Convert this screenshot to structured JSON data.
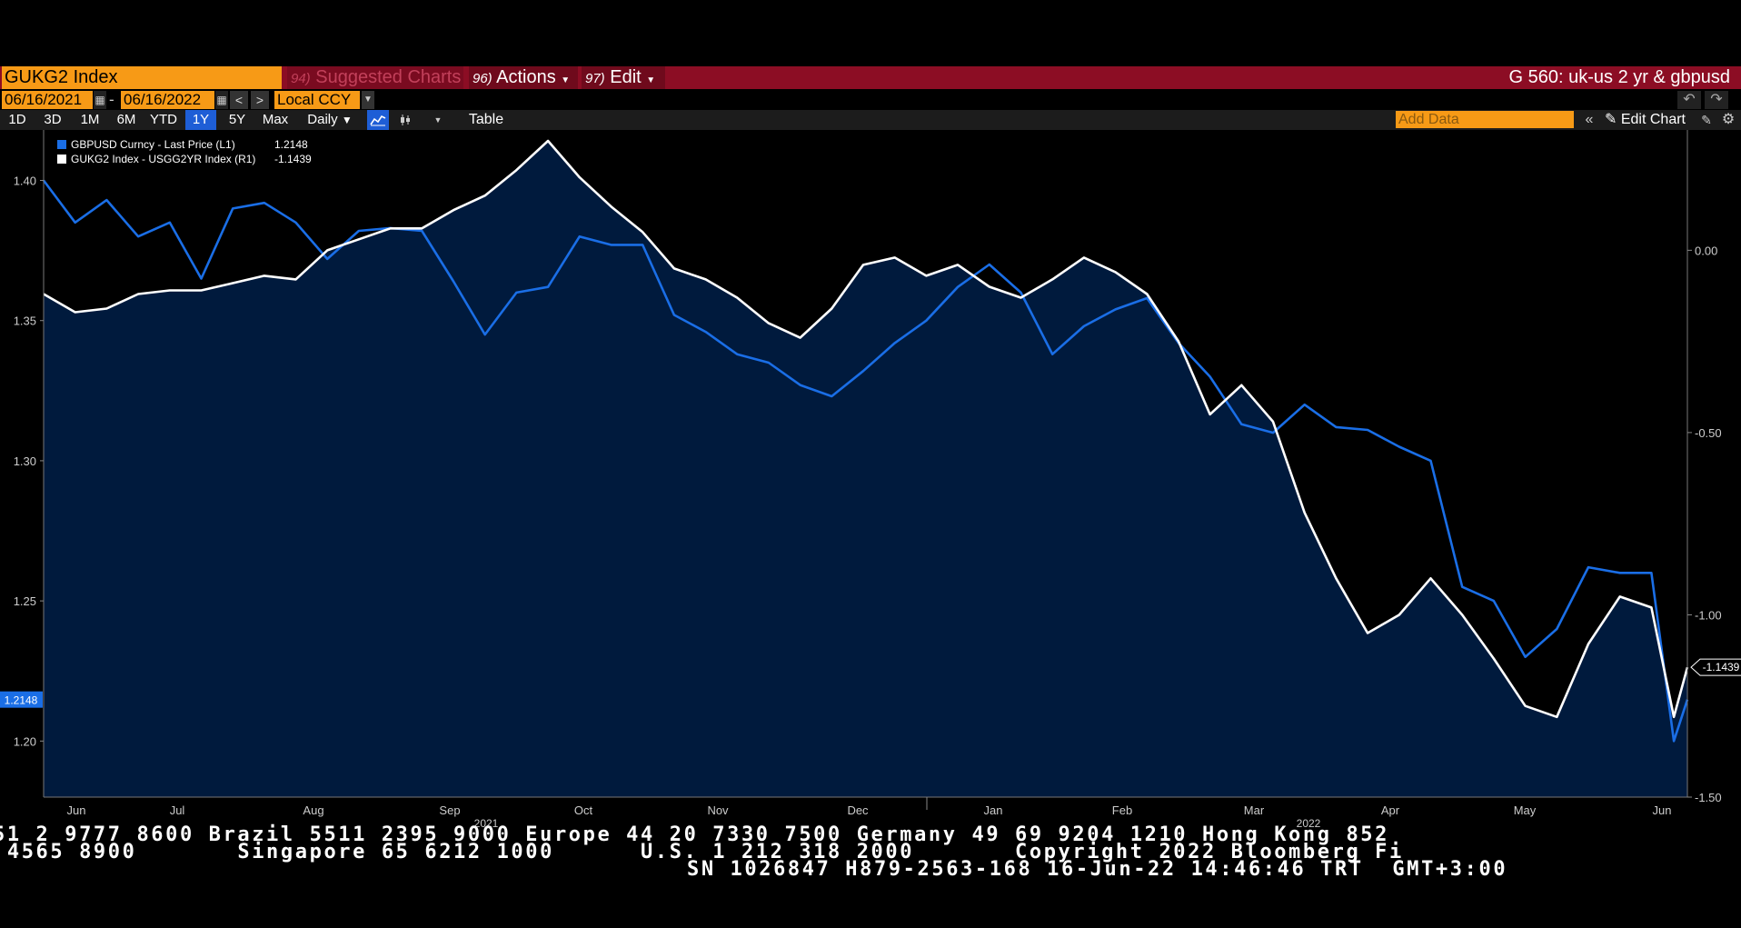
{
  "header": {
    "ticker": "GUKG2 Index",
    "suggested_num": "94)",
    "suggested_label": "Suggested Charts",
    "actions_num": "96)",
    "actions_label": "Actions",
    "edit_num": "97)",
    "edit_label": "Edit",
    "page_title": "G 560: uk-us 2 yr & gbpusd"
  },
  "daterange": {
    "start": "06/16/2021",
    "dash": "-",
    "end": "06/16/2022",
    "prev": "<",
    "next": ">",
    "currency": "Local CCY"
  },
  "toolbar": {
    "ranges": [
      "1D",
      "3D",
      "1M",
      "6M",
      "YTD",
      "1Y",
      "5Y",
      "Max"
    ],
    "active_range": "1Y",
    "frequency": "Daily",
    "table_label": "Table",
    "add_data_placeholder": "Add Data",
    "edit_chart_label": "Edit Chart"
  },
  "colors": {
    "blue_series": "#1a6ee6",
    "white_series": "#ffffff",
    "area_fill": "#001a3d",
    "brand_orange": "#f79a16",
    "brand_red": "#8c0d24"
  },
  "chart_data": {
    "type": "line",
    "legend": {
      "placement": "top-left",
      "entries": [
        {
          "label": "GBPUSD Curncy - Last Price (L1)",
          "value": "1.2148",
          "color": "#1a6ee6"
        },
        {
          "label": "GUKG2 Index - USGG2YR Index (R1)",
          "value": "-1.1439",
          "color": "#ffffff"
        }
      ]
    },
    "x_range": [
      "2021-06-16",
      "2022-06-16"
    ],
    "x_ticks": [
      "Jun",
      "Jul",
      "Aug",
      "Sep",
      "Oct",
      "Nov",
      "Dec",
      "Jan",
      "Feb",
      "Mar",
      "Apr",
      "May",
      "Jun"
    ],
    "year_labels": [
      "2021",
      "2022"
    ],
    "left_axis": {
      "ylim": [
        1.18,
        1.418
      ],
      "ticks": [
        "1.40",
        "1.35",
        "1.30",
        "1.25",
        "1.20"
      ],
      "current_label": "1.2148"
    },
    "right_axis": {
      "ylim": [
        -1.5,
        0.33
      ],
      "ticks": [
        "0.00",
        "-0.50",
        "-1.00",
        "-1.50"
      ],
      "current_label": "-1.1439"
    },
    "series": [
      {
        "name": "GBPUSD Curncy - Last Price (L1)",
        "axis": "left",
        "x": [
          "2021-06-16",
          "2021-06-23",
          "2021-06-30",
          "2021-07-07",
          "2021-07-14",
          "2021-07-21",
          "2021-07-28",
          "2021-08-04",
          "2021-08-11",
          "2021-08-18",
          "2021-08-25",
          "2021-09-01",
          "2021-09-08",
          "2021-09-15",
          "2021-09-22",
          "2021-09-29",
          "2021-10-06",
          "2021-10-13",
          "2021-10-20",
          "2021-10-27",
          "2021-11-03",
          "2021-11-10",
          "2021-11-17",
          "2021-11-24",
          "2021-12-01",
          "2021-12-08",
          "2021-12-15",
          "2021-12-22",
          "2021-12-29",
          "2022-01-05",
          "2022-01-12",
          "2022-01-19",
          "2022-01-26",
          "2022-02-02",
          "2022-02-09",
          "2022-02-16",
          "2022-02-23",
          "2022-03-02",
          "2022-03-09",
          "2022-03-16",
          "2022-03-23",
          "2022-03-30",
          "2022-04-06",
          "2022-04-13",
          "2022-04-20",
          "2022-04-27",
          "2022-05-04",
          "2022-05-11",
          "2022-05-18",
          "2022-05-25",
          "2022-06-01",
          "2022-06-08",
          "2022-06-13",
          "2022-06-16"
        ],
        "values": [
          1.4,
          1.385,
          1.393,
          1.38,
          1.385,
          1.365,
          1.39,
          1.392,
          1.385,
          1.372,
          1.382,
          1.383,
          1.382,
          1.364,
          1.345,
          1.36,
          1.362,
          1.38,
          1.377,
          1.377,
          1.352,
          1.346,
          1.338,
          1.335,
          1.327,
          1.323,
          1.332,
          1.342,
          1.35,
          1.362,
          1.37,
          1.36,
          1.338,
          1.348,
          1.354,
          1.358,
          1.342,
          1.33,
          1.313,
          1.31,
          1.32,
          1.312,
          1.311,
          1.305,
          1.3,
          1.255,
          1.25,
          1.23,
          1.24,
          1.262,
          1.26,
          1.26,
          1.2,
          1.2148
        ]
      },
      {
        "name": "GUKG2 Index - USGG2YR Index (R1)",
        "axis": "right",
        "x": [
          "2021-06-16",
          "2021-06-23",
          "2021-06-30",
          "2021-07-07",
          "2021-07-14",
          "2021-07-21",
          "2021-07-28",
          "2021-08-04",
          "2021-08-11",
          "2021-08-18",
          "2021-08-25",
          "2021-09-01",
          "2021-09-08",
          "2021-09-15",
          "2021-09-22",
          "2021-09-29",
          "2021-10-06",
          "2021-10-13",
          "2021-10-20",
          "2021-10-27",
          "2021-11-03",
          "2021-11-10",
          "2021-11-17",
          "2021-11-24",
          "2021-12-01",
          "2021-12-08",
          "2021-12-15",
          "2021-12-22",
          "2021-12-29",
          "2022-01-05",
          "2022-01-12",
          "2022-01-19",
          "2022-01-26",
          "2022-02-02",
          "2022-02-09",
          "2022-02-16",
          "2022-02-23",
          "2022-03-02",
          "2022-03-09",
          "2022-03-16",
          "2022-03-23",
          "2022-03-30",
          "2022-04-06",
          "2022-04-13",
          "2022-04-20",
          "2022-04-27",
          "2022-05-04",
          "2022-05-11",
          "2022-05-18",
          "2022-05-25",
          "2022-06-01",
          "2022-06-08",
          "2022-06-13",
          "2022-06-16"
        ],
        "values": [
          -0.12,
          -0.17,
          -0.16,
          -0.12,
          -0.11,
          -0.11,
          -0.09,
          -0.07,
          -0.08,
          0.0,
          0.03,
          0.06,
          0.06,
          0.11,
          0.15,
          0.22,
          0.3,
          0.2,
          0.12,
          0.05,
          -0.05,
          -0.08,
          -0.13,
          -0.2,
          -0.24,
          -0.16,
          -0.04,
          -0.02,
          -0.07,
          -0.04,
          -0.1,
          -0.13,
          -0.08,
          -0.02,
          -0.06,
          -0.12,
          -0.25,
          -0.45,
          -0.37,
          -0.47,
          -0.72,
          -0.9,
          -1.05,
          -1.0,
          -0.9,
          -1.0,
          -1.12,
          -1.25,
          -1.28,
          -1.08,
          -0.95,
          -0.98,
          -1.28,
          -1.1439
        ]
      }
    ]
  },
  "footer": {
    "line1": "51 2 9777 8600 Brazil 5511 2395 9000 Europe 44 20 7330 7500 Germany 49 69 9204 1210 Hong Kong 852",
    "line2": " 4565 8900       Singapore 65 6212 1000      U.S. 1 212 318 2000       Copyright 2022 Bloomberg Fi",
    "line3": "SN 1026847 H879-2563-168 16-Jun-22 14:46:46 TRT  GMT+3:00"
  }
}
